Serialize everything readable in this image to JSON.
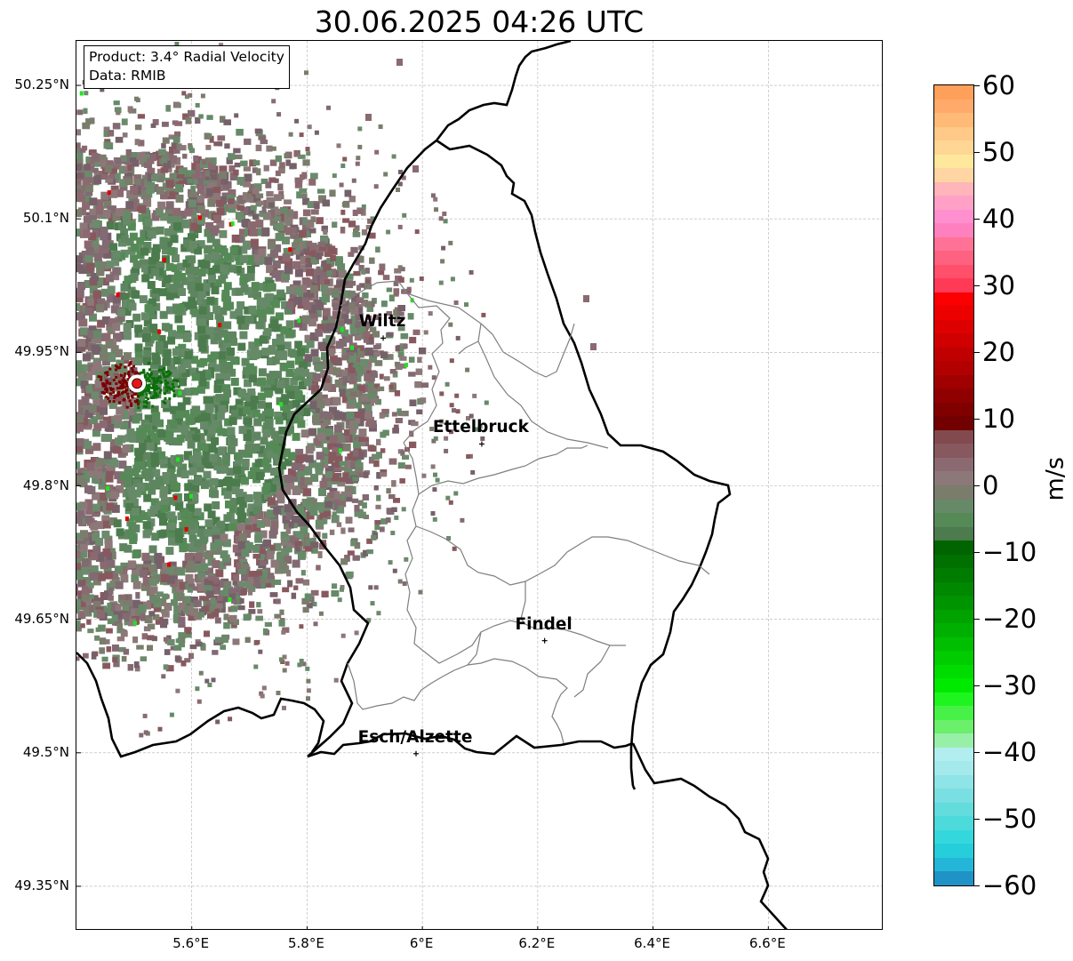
{
  "title": "30.06.2025 04:26 UTC",
  "info": {
    "product": "Product: 3.4° Radial Velocity",
    "source": "Data: RMIB"
  },
  "axes": {
    "lat_ticks": [
      "50.25°N",
      "50.1°N",
      "49.95°N",
      "49.8°N",
      "49.65°N",
      "49.5°N",
      "49.35°N"
    ],
    "lon_ticks": [
      "5.6°E",
      "5.8°E",
      "6°E",
      "6.2°E",
      "6.4°E",
      "6.6°E"
    ],
    "lat_range": [
      49.3,
      50.3
    ],
    "lon_range": [
      5.4,
      6.8
    ]
  },
  "radar_site": {
    "lon": 5.505,
    "lat": 49.915,
    "color": "#e8161b"
  },
  "cities": [
    {
      "name": "Wiltz",
      "lon": 5.932,
      "lat": 49.966
    },
    {
      "name": "Ettelbruck",
      "lon": 6.103,
      "lat": 49.847
    },
    {
      "name": "Findel",
      "lon": 6.212,
      "lat": 49.626
    },
    {
      "name": "Esch/Alzette",
      "lon": 5.989,
      "lat": 49.499
    }
  ],
  "colorbar": {
    "unit": "m/s",
    "min": -60,
    "max": 60,
    "tick_labels": [
      "60",
      "50",
      "40",
      "30",
      "20",
      "10",
      "0",
      "−10",
      "−20",
      "−30",
      "−40",
      "−50",
      "−60"
    ],
    "colors_top_to_bottom": [
      "#ffa05a",
      "#ffaa6a",
      "#ffba78",
      "#ffc987",
      "#ffd694",
      "#ffe89b",
      "#ffd5a3",
      "#ffb5b9",
      "#ffa1c6",
      "#ff8fcf",
      "#ff80bf",
      "#ff7296",
      "#ff6180",
      "#ff4f6a",
      "#ff3a56",
      "#fa0000",
      "#ec0000",
      "#de0000",
      "#d00000",
      "#c00000",
      "#b20000",
      "#a00000",
      "#900000",
      "#800000",
      "#720000",
      "#824a4e",
      "#87595e",
      "#8a6a70",
      "#8c7878",
      "#7a7c6c",
      "#668a68",
      "#558a57",
      "#4c7b4d",
      "#006400",
      "#007000",
      "#007c00",
      "#008800",
      "#009400",
      "#00a200",
      "#00b000",
      "#00be00",
      "#00cc00",
      "#00dc00",
      "#00ea00",
      "#1ef51e",
      "#48f148",
      "#6af06a",
      "#98f0a8",
      "#b2eef0",
      "#a4eaec",
      "#8ee4e6",
      "#7adfe2",
      "#62dcdc",
      "#4cdada",
      "#34d8dc",
      "#26cedc",
      "#24b6d8",
      "#1f93c6"
    ]
  },
  "map_colors": {
    "country_border": "#000000",
    "canton_border": "#7f7f7f",
    "grid": "#b0b0b0"
  }
}
